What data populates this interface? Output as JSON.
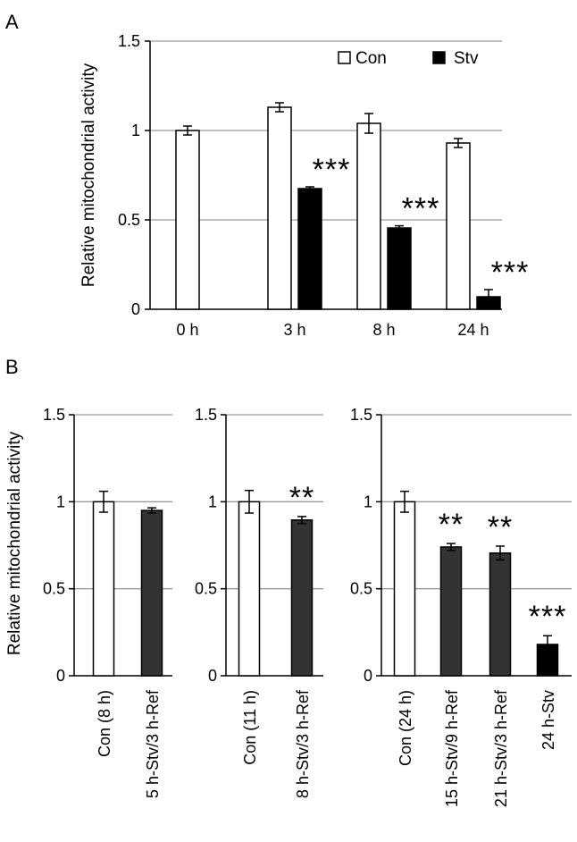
{
  "panels": {
    "a_label": "A",
    "b_label": "B"
  },
  "chart_data": [
    {
      "type": "bar",
      "panel": "A",
      "ylabel": "Relative mitochondrial activity",
      "ylim": [
        0,
        1.5
      ],
      "yticks": [
        "0",
        "0.5",
        "1",
        "1.5"
      ],
      "categories": [
        "0 h",
        "3 h",
        "8 h",
        "24 h"
      ],
      "legend_position": "top-right",
      "series": [
        {
          "name": "Con",
          "color": "#ffffff",
          "values": [
            1.0,
            1.13,
            1.04,
            0.93
          ],
          "errors": [
            0.025,
            0.025,
            0.055,
            0.025
          ]
        },
        {
          "name": "Stv",
          "color": "#000000",
          "values": [
            null,
            0.675,
            0.455,
            0.07
          ],
          "errors": [
            null,
            0.01,
            0.012,
            0.04
          ]
        }
      ],
      "significance": [
        null,
        "***",
        "***",
        "***"
      ],
      "grid": true
    },
    {
      "type": "bar",
      "panel": "B1",
      "ylabel": "Relative mitochondrial activity",
      "ylim": [
        0,
        1.5
      ],
      "yticks": [
        "0",
        "0.5",
        "1",
        "1.5"
      ],
      "categories": [
        "Con (8 h)",
        "5 h-Stv/3 h-Ref"
      ],
      "values": [
        1.0,
        0.95
      ],
      "errors": [
        0.06,
        0.015
      ],
      "colors": [
        "#ffffff",
        "#333333"
      ],
      "significance": [
        "",
        ""
      ],
      "grid": true
    },
    {
      "type": "bar",
      "panel": "B2",
      "ylim": [
        0,
        1.5
      ],
      "yticks": [
        "0",
        "0.5",
        "1",
        "1.5"
      ],
      "categories": [
        "Con (11 h)",
        "8 h-Stv/3 h-Ref"
      ],
      "values": [
        1.0,
        0.895
      ],
      "errors": [
        0.065,
        0.02
      ],
      "colors": [
        "#ffffff",
        "#333333"
      ],
      "significance": [
        "",
        "**"
      ],
      "grid": true
    },
    {
      "type": "bar",
      "panel": "B3",
      "ylim": [
        0,
        1.5
      ],
      "yticks": [
        "0",
        "0.5",
        "1",
        "1.5"
      ],
      "categories": [
        "Con (24 h)",
        "15 h-Stv/9 h-Ref",
        "21 h-Stv/3 h-Ref",
        "24 h-Stv"
      ],
      "values": [
        1.0,
        0.74,
        0.705,
        0.18
      ],
      "errors": [
        0.06,
        0.02,
        0.04,
        0.05
      ],
      "colors": [
        "#ffffff",
        "#333333",
        "#333333",
        "#000000"
      ],
      "significance": [
        "",
        "**",
        "**",
        "***"
      ],
      "grid": true
    }
  ]
}
